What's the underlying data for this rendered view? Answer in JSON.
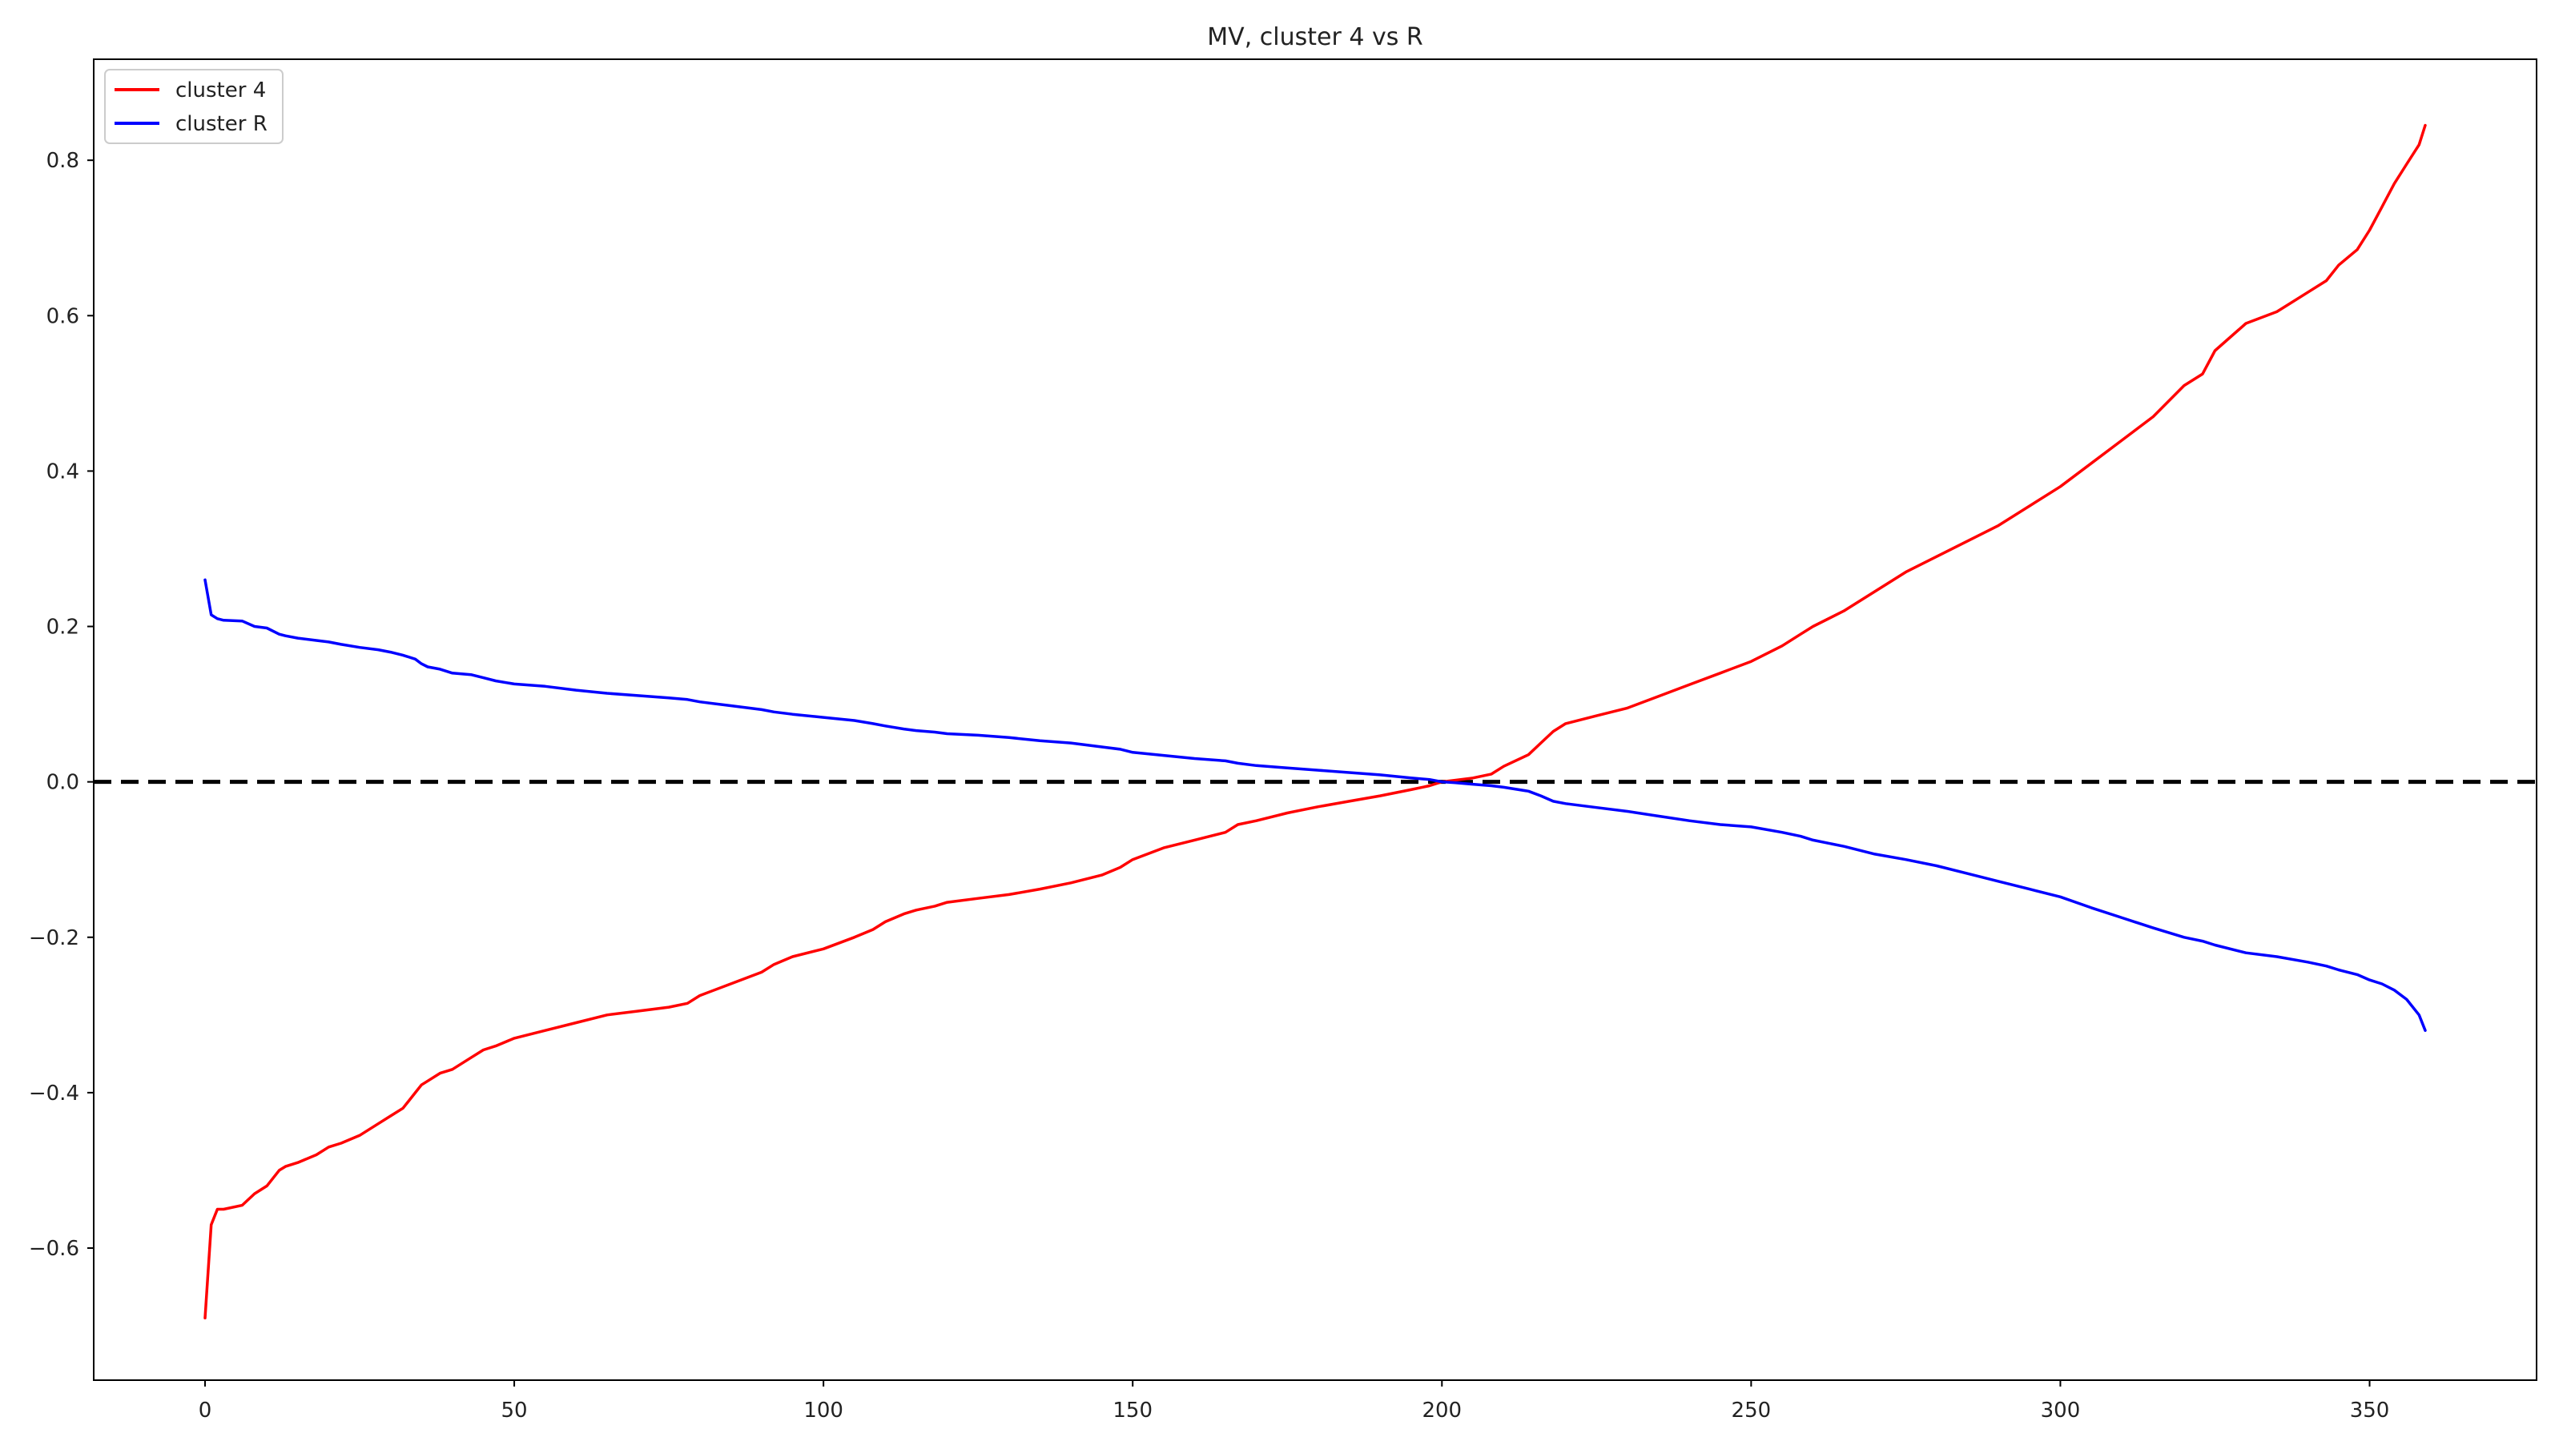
{
  "chart_data": {
    "type": "line",
    "title": "MV, cluster 4 vs R",
    "xlabel": "",
    "ylabel": "",
    "xlim": [
      -18,
      377
    ],
    "ylim": [
      -0.77,
      0.93
    ],
    "xticks": [
      0,
      50,
      100,
      150,
      200,
      250,
      300,
      350
    ],
    "yticks": [
      -0.6,
      -0.4,
      -0.2,
      0.0,
      0.2,
      0.4,
      0.6,
      0.8
    ],
    "ytick_labels": [
      "−0.6",
      "−0.4",
      "−0.2",
      "0.0",
      "0.2",
      "0.4",
      "0.6",
      "0.8"
    ],
    "grid": false,
    "legend": "top-left",
    "reference_line": {
      "y": 0.0,
      "style": "dashed",
      "color": "#000000"
    },
    "series": [
      {
        "name": "cluster 4",
        "color": "#ff0000",
        "x": [
          0,
          1,
          2,
          3,
          6,
          8,
          10,
          12,
          13,
          15,
          18,
          20,
          22,
          25,
          28,
          30,
          32,
          34,
          35,
          36,
          38,
          40,
          43,
          45,
          47,
          50,
          55,
          60,
          65,
          70,
          75,
          78,
          80,
          85,
          90,
          92,
          95,
          100,
          105,
          108,
          110,
          113,
          115,
          118,
          120,
          125,
          130,
          135,
          140,
          145,
          148,
          150,
          155,
          160,
          165,
          167,
          170,
          175,
          180,
          185,
          190,
          195,
          198,
          200,
          202,
          205,
          208,
          210,
          214,
          216,
          218,
          220,
          225,
          230,
          235,
          240,
          245,
          250,
          255,
          258,
          260,
          265,
          270,
          275,
          280,
          285,
          290,
          295,
          300,
          305,
          310,
          315,
          320,
          323,
          325,
          330,
          335,
          340,
          343,
          345,
          348,
          350,
          352,
          354,
          356,
          358,
          359
        ],
        "values": [
          -0.69,
          -0.57,
          -0.55,
          -0.55,
          -0.545,
          -0.53,
          -0.52,
          -0.5,
          -0.495,
          -0.49,
          -0.48,
          -0.47,
          -0.465,
          -0.455,
          -0.44,
          -0.43,
          -0.42,
          -0.4,
          -0.39,
          -0.385,
          -0.375,
          -0.37,
          -0.355,
          -0.345,
          -0.34,
          -0.33,
          -0.32,
          -0.31,
          -0.3,
          -0.295,
          -0.29,
          -0.285,
          -0.275,
          -0.26,
          -0.245,
          -0.235,
          -0.225,
          -0.215,
          -0.2,
          -0.19,
          -0.18,
          -0.17,
          -0.165,
          -0.16,
          -0.155,
          -0.15,
          -0.145,
          -0.138,
          -0.13,
          -0.12,
          -0.11,
          -0.1,
          -0.085,
          -0.075,
          -0.065,
          -0.055,
          -0.05,
          -0.04,
          -0.032,
          -0.025,
          -0.018,
          -0.01,
          -0.005,
          0.0,
          0.002,
          0.005,
          0.01,
          0.02,
          0.035,
          0.05,
          0.065,
          0.075,
          0.085,
          0.095,
          0.11,
          0.125,
          0.14,
          0.155,
          0.175,
          0.19,
          0.2,
          0.22,
          0.245,
          0.27,
          0.29,
          0.31,
          0.33,
          0.355,
          0.38,
          0.41,
          0.44,
          0.47,
          0.51,
          0.525,
          0.555,
          0.59,
          0.605,
          0.63,
          0.645,
          0.665,
          0.685,
          0.71,
          0.74,
          0.77,
          0.795,
          0.82,
          0.845
        ]
      },
      {
        "name": "cluster R",
        "color": "#0000ff",
        "x": [
          0,
          1,
          2,
          3,
          6,
          8,
          10,
          12,
          13,
          15,
          18,
          20,
          22,
          25,
          28,
          30,
          32,
          34,
          35,
          36,
          38,
          40,
          43,
          45,
          47,
          50,
          55,
          60,
          65,
          70,
          75,
          78,
          80,
          85,
          90,
          92,
          95,
          100,
          105,
          108,
          110,
          113,
          115,
          118,
          120,
          125,
          130,
          135,
          140,
          145,
          148,
          150,
          155,
          160,
          165,
          167,
          170,
          175,
          180,
          185,
          190,
          195,
          198,
          200,
          202,
          205,
          208,
          210,
          214,
          216,
          218,
          220,
          225,
          230,
          235,
          240,
          245,
          250,
          255,
          258,
          260,
          265,
          270,
          275,
          280,
          285,
          290,
          295,
          300,
          305,
          310,
          315,
          320,
          323,
          325,
          330,
          335,
          340,
          343,
          345,
          348,
          350,
          352,
          354,
          356,
          358,
          359
        ],
        "values": [
          0.26,
          0.215,
          0.21,
          0.208,
          0.207,
          0.2,
          0.198,
          0.19,
          0.188,
          0.185,
          0.182,
          0.18,
          0.177,
          0.173,
          0.17,
          0.167,
          0.163,
          0.158,
          0.152,
          0.148,
          0.145,
          0.14,
          0.138,
          0.134,
          0.13,
          0.126,
          0.123,
          0.118,
          0.114,
          0.111,
          0.108,
          0.106,
          0.103,
          0.098,
          0.093,
          0.09,
          0.087,
          0.083,
          0.079,
          0.075,
          0.072,
          0.068,
          0.066,
          0.064,
          0.062,
          0.06,
          0.057,
          0.053,
          0.05,
          0.045,
          0.042,
          0.038,
          0.034,
          0.03,
          0.027,
          0.024,
          0.021,
          0.018,
          0.015,
          0.012,
          0.009,
          0.005,
          0.003,
          0.0,
          -0.001,
          -0.003,
          -0.005,
          -0.007,
          -0.012,
          -0.018,
          -0.025,
          -0.028,
          -0.033,
          -0.038,
          -0.044,
          -0.05,
          -0.055,
          -0.058,
          -0.065,
          -0.07,
          -0.075,
          -0.083,
          -0.093,
          -0.1,
          -0.108,
          -0.118,
          -0.128,
          -0.138,
          -0.148,
          -0.162,
          -0.175,
          -0.188,
          -0.2,
          -0.205,
          -0.21,
          -0.22,
          -0.225,
          -0.232,
          -0.237,
          -0.242,
          -0.248,
          -0.255,
          -0.26,
          -0.268,
          -0.28,
          -0.3,
          -0.32
        ]
      }
    ]
  }
}
